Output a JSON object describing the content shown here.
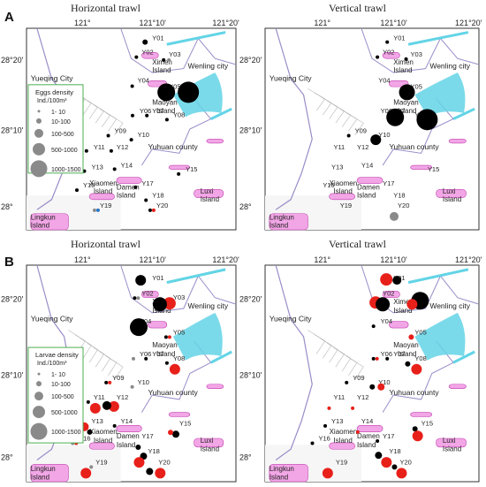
{
  "panels": [
    {
      "letter": "A",
      "left_title": "Horizontal trawl",
      "right_title": "Vertical trawl"
    },
    {
      "letter": "B",
      "left_title": "Horizontal trawl",
      "right_title": "Vertical trawl"
    }
  ],
  "lon_labels": [
    "121°",
    "121°10'",
    "121°20'"
  ],
  "lat_labels_A": [
    "28°20'",
    "28°10'",
    "28°"
  ],
  "lat_labels_B": [
    "28°20'",
    "28°10'",
    "28°"
  ],
  "places": {
    "yueqing": "Yueqing City",
    "wenling": "Wenling city",
    "ximen": "Ximen Island",
    "maoyan": "Maoyan Island",
    "yuhuan": "Yuhuan county",
    "damen": "Damen Island",
    "xiaomen": "Xiaomen Island",
    "luxi": "Luxi Island",
    "lingkun": "Lingkun Island"
  },
  "legend_A": {
    "title": "Eggs density",
    "unit": "Ind./100m³",
    "classes": [
      "1- 10",
      "10-100",
      "100-500",
      "500-1000",
      "1000-1500"
    ]
  },
  "legend_B": {
    "title": "Larvae density",
    "unit": "Ind./100m³",
    "classes": [
      "1- 10",
      "10-100",
      "100-500",
      "500-1000",
      "1000-1500"
    ]
  },
  "stations": [
    "Y01",
    "Y02",
    "Y03",
    "Y04",
    "Y05",
    "Y06",
    "Y07",
    "Y08",
    "Y09",
    "Y10",
    "Y11",
    "Y12",
    "Y13",
    "Y14",
    "Y15",
    "Y16",
    "Y17",
    "Y18",
    "Y19",
    "Y20"
  ],
  "colors": {
    "land": "#ffffff",
    "island": "#f2a6e6",
    "island_stroke": "#c23fb0",
    "water": "#63d4e6",
    "black": "#000000",
    "red": "#e8201a",
    "gray": "#8a8a8a",
    "legend_border": "#4caf50"
  }
}
